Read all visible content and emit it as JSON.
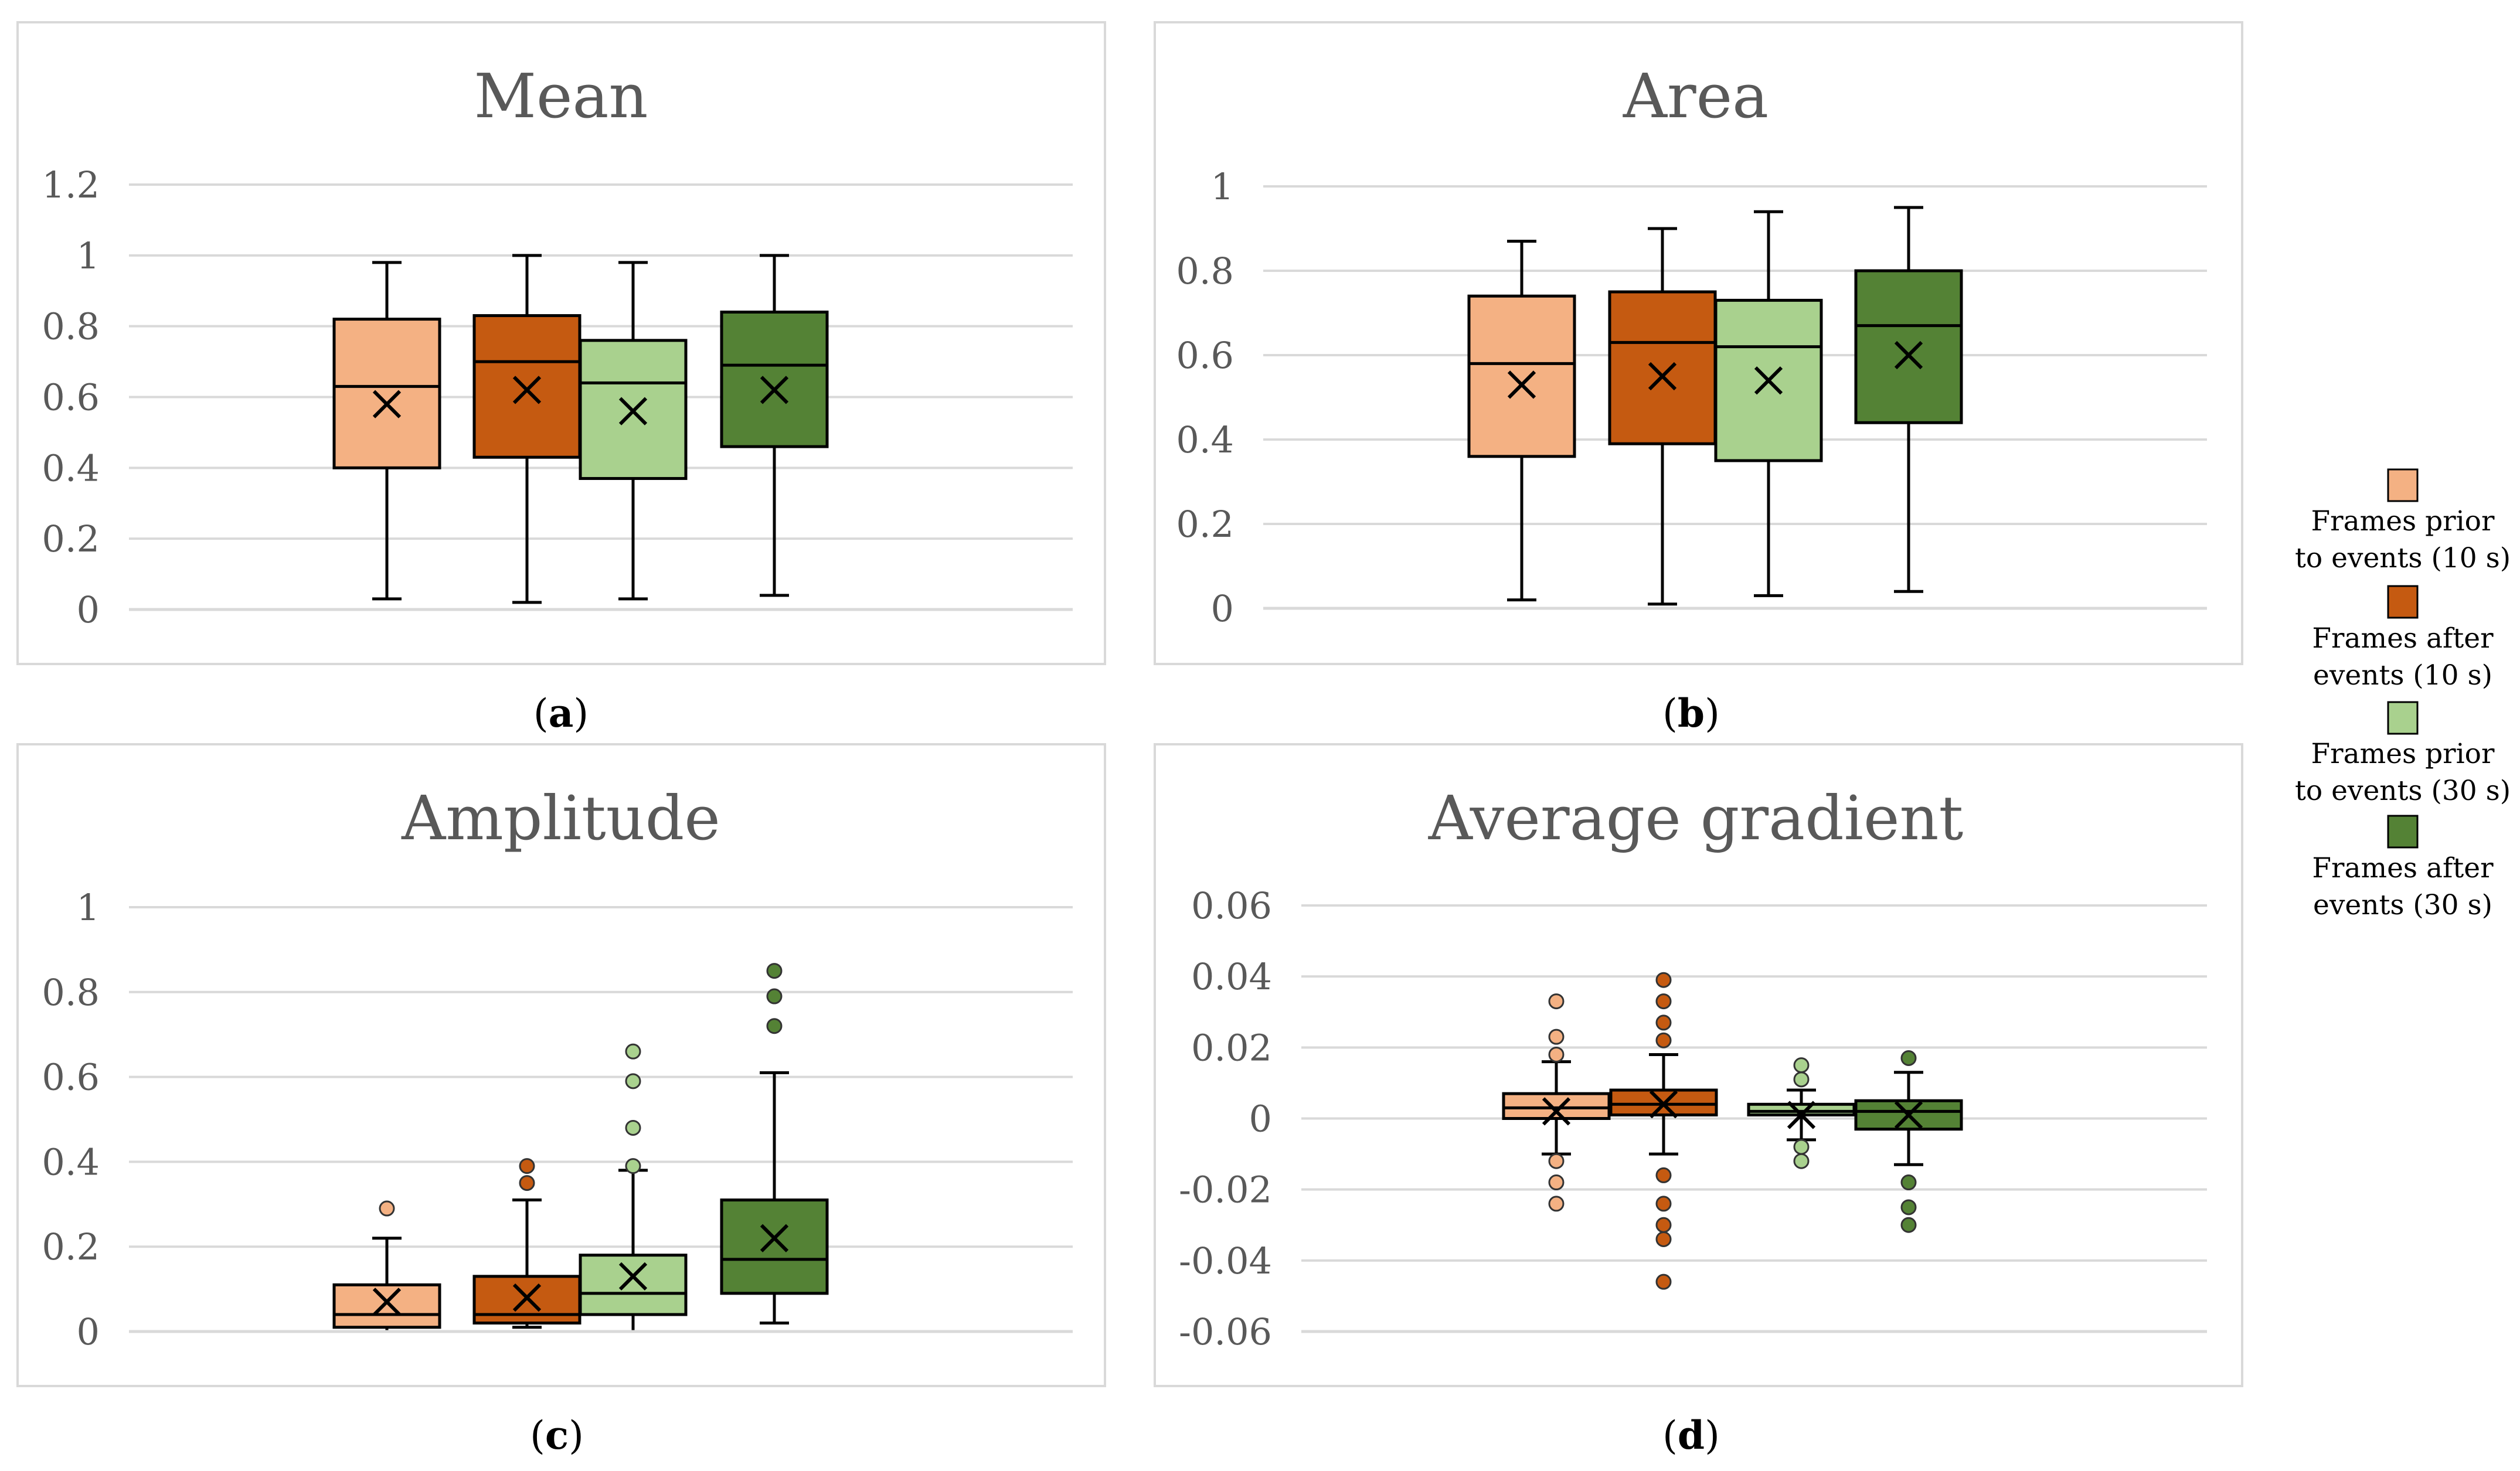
{
  "series_colors": [
    "#f4b183",
    "#c55a11",
    "#a9d18e",
    "#548235"
  ],
  "legend": {
    "items": [
      {
        "line1": "Frames prior",
        "line2": "to events (10 s)",
        "color": "#f4b183"
      },
      {
        "line1": "Frames after",
        "line2": "events (10 s)",
        "color": "#c55a11"
      },
      {
        "line1": "Frames prior",
        "line2": "to events (30 s)",
        "color": "#a9d18e"
      },
      {
        "line1": "Frames after",
        "line2": "events (30 s)",
        "color": "#548235"
      }
    ]
  },
  "chart_data": [
    {
      "type": "box",
      "panel": "a",
      "caption_open": "(",
      "caption_letter": "a",
      "caption_close": ")",
      "title": "Mean",
      "ylim": [
        0,
        1.2
      ],
      "yticks": [
        "0",
        "0.2",
        "0.4",
        "0.6",
        "0.8",
        "1",
        "1.2"
      ],
      "series": [
        {
          "name": "Frames prior to events (10 s)",
          "min": 0.03,
          "q1": 0.4,
          "median": 0.63,
          "q3": 0.82,
          "max": 0.98,
          "mean": 0.58,
          "outliers": []
        },
        {
          "name": "Frames after events (10 s)",
          "min": 0.02,
          "q1": 0.43,
          "median": 0.7,
          "q3": 0.83,
          "max": 1.0,
          "mean": 0.62,
          "outliers": []
        },
        {
          "name": "Frames prior to events (30 s)",
          "min": 0.03,
          "q1": 0.37,
          "median": 0.64,
          "q3": 0.76,
          "max": 0.98,
          "mean": 0.56,
          "outliers": []
        },
        {
          "name": "Frames after events (30 s)",
          "min": 0.04,
          "q1": 0.46,
          "median": 0.69,
          "q3": 0.84,
          "max": 1.0,
          "mean": 0.62,
          "outliers": []
        }
      ]
    },
    {
      "type": "box",
      "panel": "b",
      "caption_open": "(",
      "caption_letter": "b",
      "caption_close": ")",
      "title": "Area",
      "ylim": [
        0,
        1
      ],
      "yticks": [
        "0",
        "0.2",
        "0.4",
        "0.6",
        "0.8",
        "1"
      ],
      "series": [
        {
          "name": "Frames prior to events (10 s)",
          "min": 0.02,
          "q1": 0.36,
          "median": 0.58,
          "q3": 0.74,
          "max": 0.87,
          "mean": 0.53,
          "outliers": []
        },
        {
          "name": "Frames after events (10 s)",
          "min": 0.01,
          "q1": 0.39,
          "median": 0.63,
          "q3": 0.75,
          "max": 0.9,
          "mean": 0.55,
          "outliers": []
        },
        {
          "name": "Frames prior to events (30 s)",
          "min": 0.03,
          "q1": 0.35,
          "median": 0.62,
          "q3": 0.73,
          "max": 0.94,
          "mean": 0.54,
          "outliers": []
        },
        {
          "name": "Frames after events (30 s)",
          "min": 0.04,
          "q1": 0.44,
          "median": 0.67,
          "q3": 0.8,
          "max": 0.95,
          "mean": 0.6,
          "outliers": []
        }
      ]
    },
    {
      "type": "box",
      "panel": "c",
      "caption_open": "(",
      "caption_letter": "c",
      "caption_close": ")",
      "title": "Amplitude",
      "ylim": [
        0,
        1
      ],
      "yticks": [
        "0",
        "0.2",
        "0.4",
        "0.6",
        "0.8",
        "1"
      ],
      "series": [
        {
          "name": "Frames prior to events (10 s)",
          "min": 0.0,
          "q1": 0.01,
          "median": 0.04,
          "q3": 0.11,
          "max": 0.22,
          "mean": 0.07,
          "outliers": [
            0.29
          ]
        },
        {
          "name": "Frames after events (10 s)",
          "min": 0.01,
          "q1": 0.02,
          "median": 0.04,
          "q3": 0.13,
          "max": 0.31,
          "mean": 0.08,
          "outliers": [
            0.35,
            0.39
          ]
        },
        {
          "name": "Frames prior to events (30 s)",
          "min": 0.0,
          "q1": 0.04,
          "median": 0.09,
          "q3": 0.18,
          "max": 0.38,
          "mean": 0.13,
          "outliers": [
            0.39,
            0.48,
            0.59,
            0.66
          ]
        },
        {
          "name": "Frames after events (30 s)",
          "min": 0.02,
          "q1": 0.09,
          "median": 0.17,
          "q3": 0.31,
          "max": 0.61,
          "mean": 0.22,
          "outliers": [
            0.72,
            0.79,
            0.85
          ]
        }
      ]
    },
    {
      "type": "box",
      "panel": "d",
      "caption_open": "(",
      "caption_letter": "d",
      "caption_close": ")",
      "title": "Average gradient",
      "ylim": [
        -0.06,
        0.06
      ],
      "yticks": [
        "-0.06",
        "-0.04",
        "-0.02",
        "0",
        "0.02",
        "0.04",
        "0.06"
      ],
      "series": [
        {
          "name": "Frames prior to events (10 s)",
          "min": -0.01,
          "q1": 0.0,
          "median": 0.003,
          "q3": 0.007,
          "max": 0.016,
          "mean": 0.002,
          "outliers": [
            0.018,
            0.023,
            0.033,
            -0.012,
            -0.018,
            -0.024
          ]
        },
        {
          "name": "Frames after events (10 s)",
          "min": -0.01,
          "q1": 0.001,
          "median": 0.004,
          "q3": 0.008,
          "max": 0.018,
          "mean": 0.004,
          "outliers": [
            0.022,
            0.027,
            0.033,
            0.039,
            -0.016,
            -0.024,
            -0.03,
            -0.034,
            -0.046
          ]
        },
        {
          "name": "Frames prior to events (30 s)",
          "min": -0.006,
          "q1": 0.001,
          "median": 0.002,
          "q3": 0.004,
          "max": 0.008,
          "mean": 0.001,
          "outliers": [
            0.011,
            0.015,
            -0.008,
            -0.012
          ]
        },
        {
          "name": "Frames after events (30 s)",
          "min": -0.013,
          "q1": -0.003,
          "median": 0.002,
          "q3": 0.005,
          "max": 0.013,
          "mean": 0.001,
          "outliers": [
            0.017,
            -0.018,
            -0.025,
            -0.03
          ]
        }
      ]
    }
  ]
}
